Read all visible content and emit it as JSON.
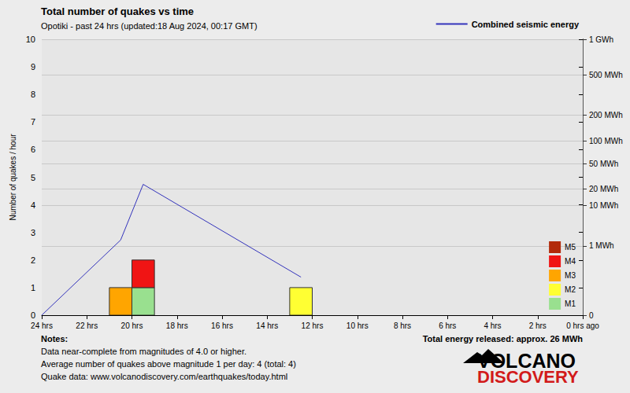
{
  "chart_data": {
    "type": "bar",
    "title": "Total number of quakes vs time",
    "subtitle": "Opotiki - past 24 hrs (updated:18 Aug 2024, 00:17 GMT)",
    "ylabel": "Number of quakes / hour",
    "bins": [
      24,
      23,
      22,
      21,
      20,
      19,
      18,
      17,
      16,
      15,
      14,
      13,
      12,
      11,
      10,
      9,
      8,
      7,
      6,
      5,
      4,
      3,
      2,
      1,
      0
    ],
    "stacked": true,
    "series": [
      {
        "name": "M1",
        "color": "#99e08f",
        "values": [
          0,
          0,
          0,
          0,
          1,
          0,
          0,
          0,
          0,
          0,
          0,
          0,
          0,
          0,
          0,
          0,
          0,
          0,
          0,
          0,
          0,
          0,
          0,
          0
        ]
      },
      {
        "name": "M2",
        "color": "#ffff33",
        "values": [
          0,
          0,
          0,
          0,
          0,
          0,
          0,
          0,
          0,
          0,
          0,
          1,
          0,
          0,
          0,
          0,
          0,
          0,
          0,
          0,
          0,
          0,
          0,
          0
        ]
      },
      {
        "name": "M3",
        "color": "#ffa500",
        "values": [
          0,
          0,
          0,
          1,
          0,
          0,
          0,
          0,
          0,
          0,
          0,
          0,
          0,
          0,
          0,
          0,
          0,
          0,
          0,
          0,
          0,
          0,
          0,
          0
        ]
      },
      {
        "name": "M4",
        "color": "#f01414",
        "values": [
          0,
          0,
          0,
          0,
          1,
          0,
          0,
          0,
          0,
          0,
          0,
          0,
          0,
          0,
          0,
          0,
          0,
          0,
          0,
          0,
          0,
          0,
          0,
          0
        ]
      },
      {
        "name": "M5",
        "color": "#b22a0a",
        "values": [
          0,
          0,
          0,
          0,
          0,
          0,
          0,
          0,
          0,
          0,
          0,
          0,
          0,
          0,
          0,
          0,
          0,
          0,
          0,
          0,
          0,
          0,
          0,
          0
        ]
      },
      {
        "name": "Combined seismic energy",
        "type": "line",
        "axis": "y2",
        "color": "#3333bb",
        "x": [
          24,
          20.5,
          19.5,
          12.5
        ],
        "values": [
          0,
          1.5,
          24,
          0.05
        ]
      }
    ],
    "xlim": [
      24,
      0
    ],
    "xticks": [
      {
        "value": 24,
        "label": "24 hrs"
      },
      {
        "value": 22,
        "label": "22 hrs"
      },
      {
        "value": 20,
        "label": "20 hrs"
      },
      {
        "value": 18,
        "label": "18 hrs"
      },
      {
        "value": 16,
        "label": "16 hrs"
      },
      {
        "value": 14,
        "label": "14 hrs"
      },
      {
        "value": 12,
        "label": "12 hrs"
      },
      {
        "value": 10,
        "label": "10 hrs"
      },
      {
        "value": 8,
        "label": "8 hrs"
      },
      {
        "value": 6,
        "label": "6 hrs"
      },
      {
        "value": 4,
        "label": "4 hrs"
      },
      {
        "value": 2,
        "label": "2 hrs"
      },
      {
        "value": 0,
        "label": "0 hrs ago"
      }
    ],
    "ylim": [
      0,
      10
    ],
    "yticks": [
      0,
      1,
      2,
      3,
      4,
      5,
      6,
      7,
      8,
      9,
      10
    ],
    "y2lim": [
      0,
      1000
    ],
    "y2ticks": [
      0,
      {
        "value": 1,
        "label": "1 MWh"
      },
      {
        "value": 10,
        "label": "10 MWh"
      },
      {
        "value": 20,
        "label": "20 MWh"
      },
      {
        "value": 50,
        "label": "50 MWh"
      },
      {
        "value": 100,
        "label": "100 MWh"
      },
      {
        "value": 200,
        "label": "200 MWh"
      },
      {
        "value": 500,
        "label": "500 MWh"
      },
      {
        "value": 1000,
        "label": "1 GWh"
      }
    ],
    "grid": true,
    "legend": "right",
    "notes": [
      "Notes:",
      "Data near-complete from magnitudes of 4.0 or higher.",
      "Average number of quakes above magnitude 1 per day: 4 (total: 4)",
      "Quake data: www.volcanodiscovery.com/earthquakes/today.html"
    ],
    "energy_total": "Total energy released: approx. 26 MWh",
    "logo": [
      "VOLCANO",
      "DISCOVERY"
    ]
  }
}
